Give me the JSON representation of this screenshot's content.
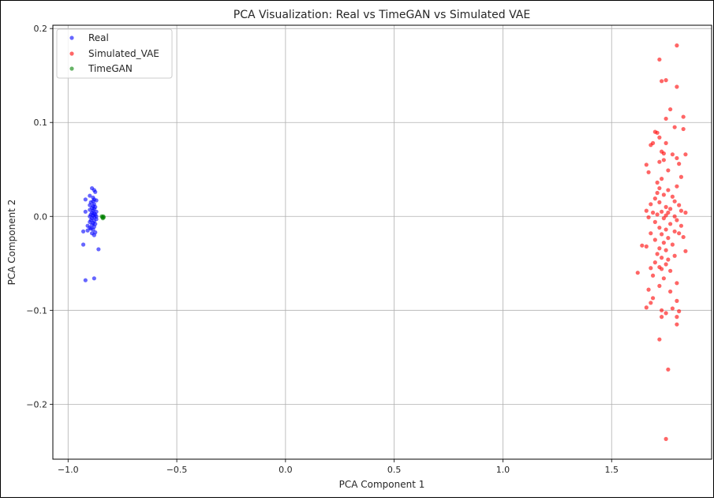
{
  "chart_data": {
    "type": "scatter",
    "title": "PCA Visualization: Real vs TimeGAN vs Simulated VAE",
    "xlabel": "PCA Component 1",
    "ylabel": "PCA Component 2",
    "xlim": [
      -1.07,
      1.96
    ],
    "ylim": [
      -0.2585,
      0.2035
    ],
    "xticks": [
      -1.0,
      -0.5,
      0.0,
      0.5,
      1.0,
      1.5
    ],
    "xtick_labels": [
      "−1.0",
      "−0.5",
      "0.0",
      "0.5",
      "1.0",
      "1.5"
    ],
    "yticks": [
      -0.2,
      -0.1,
      0.0,
      0.1,
      0.2
    ],
    "ytick_labels": [
      "−0.2",
      "−0.1",
      "0.0",
      "0.1",
      "0.2"
    ],
    "grid": true,
    "legend_position": "top-left",
    "series": [
      {
        "name": "Real",
        "color": "#0000ff",
        "points": [
          [
            -0.89,
            0.03
          ],
          [
            -0.88,
            0.028
          ],
          [
            -0.875,
            0.026
          ],
          [
            -0.9,
            0.022
          ],
          [
            -0.885,
            0.02
          ],
          [
            -0.88,
            0.018
          ],
          [
            -0.92,
            0.018
          ],
          [
            -0.87,
            0.017
          ],
          [
            -0.895,
            0.015
          ],
          [
            -0.88,
            0.013
          ],
          [
            -0.9,
            0.012
          ],
          [
            -0.885,
            0.011
          ],
          [
            -0.875,
            0.01
          ],
          [
            -0.89,
            0.009
          ],
          [
            -0.88,
            0.008
          ],
          [
            -0.9,
            0.007
          ],
          [
            -0.885,
            0.006
          ],
          [
            -0.87,
            0.005
          ],
          [
            -0.92,
            0.005
          ],
          [
            -0.89,
            0.004
          ],
          [
            -0.88,
            0.003
          ],
          [
            -0.895,
            0.002
          ],
          [
            -0.875,
            0.002
          ],
          [
            -0.885,
            0.001
          ],
          [
            -0.9,
            0.0
          ],
          [
            -0.88,
            -0.001
          ],
          [
            -0.89,
            -0.002
          ],
          [
            -0.87,
            -0.003
          ],
          [
            -0.895,
            -0.004
          ],
          [
            -0.88,
            -0.005
          ],
          [
            -0.9,
            -0.006
          ],
          [
            -0.885,
            -0.007
          ],
          [
            -0.875,
            -0.008
          ],
          [
            -0.89,
            -0.009
          ],
          [
            -0.91,
            -0.01
          ],
          [
            -0.88,
            -0.011
          ],
          [
            -0.9,
            -0.012
          ],
          [
            -0.885,
            -0.014
          ],
          [
            -0.93,
            -0.016
          ],
          [
            -0.875,
            -0.017
          ],
          [
            -0.89,
            -0.018
          ],
          [
            -0.88,
            -0.02
          ],
          [
            -0.91,
            -0.015
          ],
          [
            -0.895,
            -0.013
          ],
          [
            -0.87,
            0.0
          ],
          [
            -0.93,
            -0.03
          ],
          [
            -0.86,
            -0.035
          ],
          [
            -0.92,
            -0.068
          ],
          [
            -0.88,
            -0.066
          ],
          [
            -0.885,
            0.016
          ]
        ]
      },
      {
        "name": "Simulated_VAE",
        "color": "#ff0000",
        "points": [
          [
            1.8,
            0.182
          ],
          [
            1.72,
            0.167
          ],
          [
            1.75,
            0.145
          ],
          [
            1.73,
            0.144
          ],
          [
            1.8,
            0.138
          ],
          [
            1.77,
            0.114
          ],
          [
            1.83,
            0.106
          ],
          [
            1.75,
            0.104
          ],
          [
            1.79,
            0.095
          ],
          [
            1.83,
            0.093
          ],
          [
            1.7,
            0.09
          ],
          [
            1.71,
            0.089
          ],
          [
            1.72,
            0.084
          ],
          [
            1.69,
            0.078
          ],
          [
            1.75,
            0.078
          ],
          [
            1.68,
            0.076
          ],
          [
            1.73,
            0.069
          ],
          [
            1.74,
            0.067
          ],
          [
            1.78,
            0.066
          ],
          [
            1.84,
            0.066
          ],
          [
            1.8,
            0.062
          ],
          [
            1.74,
            0.06
          ],
          [
            1.72,
            0.058
          ],
          [
            1.81,
            0.056
          ],
          [
            1.66,
            0.055
          ],
          [
            1.67,
            0.047
          ],
          [
            1.76,
            0.049
          ],
          [
            1.82,
            0.042
          ],
          [
            1.73,
            0.04
          ],
          [
            1.71,
            0.036
          ],
          [
            1.8,
            0.032
          ],
          [
            1.72,
            0.03
          ],
          [
            1.76,
            0.028
          ],
          [
            1.71,
            0.025
          ],
          [
            1.74,
            0.023
          ],
          [
            1.78,
            0.021
          ],
          [
            1.7,
            0.019
          ],
          [
            1.79,
            0.016
          ],
          [
            1.72,
            0.015
          ],
          [
            1.68,
            0.013
          ],
          [
            1.81,
            0.012
          ],
          [
            1.75,
            0.01
          ],
          [
            1.77,
            0.008
          ],
          [
            1.82,
            0.006
          ],
          [
            1.66,
            0.006
          ],
          [
            1.73,
            0.005
          ],
          [
            1.76,
            0.004
          ],
          [
            1.84,
            0.004
          ],
          [
            1.69,
            0.004
          ],
          [
            1.71,
            0.002
          ],
          [
            1.75,
            0.001
          ],
          [
            1.79,
            0.0
          ],
          [
            1.67,
            -0.001
          ],
          [
            1.74,
            -0.002
          ],
          [
            1.8,
            -0.004
          ],
          [
            1.7,
            -0.006
          ],
          [
            1.77,
            -0.008
          ],
          [
            1.82,
            -0.01
          ],
          [
            1.72,
            -0.012
          ],
          [
            1.75,
            -0.014
          ],
          [
            1.79,
            -0.016
          ],
          [
            1.68,
            -0.018
          ],
          [
            1.81,
            -0.018
          ],
          [
            1.73,
            -0.019
          ],
          [
            1.83,
            -0.022
          ],
          [
            1.76,
            -0.023
          ],
          [
            1.7,
            -0.025
          ],
          [
            1.74,
            -0.028
          ],
          [
            1.78,
            -0.03
          ],
          [
            1.64,
            -0.031
          ],
          [
            1.66,
            -0.032
          ],
          [
            1.72,
            -0.034
          ],
          [
            1.75,
            -0.036
          ],
          [
            1.84,
            -0.037
          ],
          [
            1.71,
            -0.04
          ],
          [
            1.79,
            -0.042
          ],
          [
            1.73,
            -0.044
          ],
          [
            1.76,
            -0.046
          ],
          [
            1.7,
            -0.049
          ],
          [
            1.75,
            -0.051
          ],
          [
            1.72,
            -0.054
          ],
          [
            1.68,
            -0.055
          ],
          [
            1.73,
            -0.056
          ],
          [
            1.77,
            -0.058
          ],
          [
            1.62,
            -0.06
          ],
          [
            1.69,
            -0.063
          ],
          [
            1.74,
            -0.066
          ],
          [
            1.8,
            -0.071
          ],
          [
            1.72,
            -0.074
          ],
          [
            1.67,
            -0.078
          ],
          [
            1.77,
            -0.08
          ],
          [
            1.69,
            -0.087
          ],
          [
            1.8,
            -0.09
          ],
          [
            1.68,
            -0.092
          ],
          [
            1.66,
            -0.097
          ],
          [
            1.78,
            -0.098
          ],
          [
            1.73,
            -0.1
          ],
          [
            1.81,
            -0.101
          ],
          [
            1.75,
            -0.103
          ],
          [
            1.8,
            -0.107
          ],
          [
            1.73,
            -0.107
          ],
          [
            1.8,
            -0.115
          ],
          [
            1.72,
            -0.131
          ],
          [
            1.76,
            -0.163
          ],
          [
            1.75,
            -0.237
          ]
        ]
      },
      {
        "name": "TimeGAN",
        "color": "#008000",
        "points": [
          [
            -0.842,
            -0.001
          ],
          [
            -0.838,
            0.0
          ],
          [
            -0.845,
            0.0
          ],
          [
            -0.84,
            -0.002
          ],
          [
            -0.836,
            -0.001
          ]
        ]
      }
    ]
  }
}
